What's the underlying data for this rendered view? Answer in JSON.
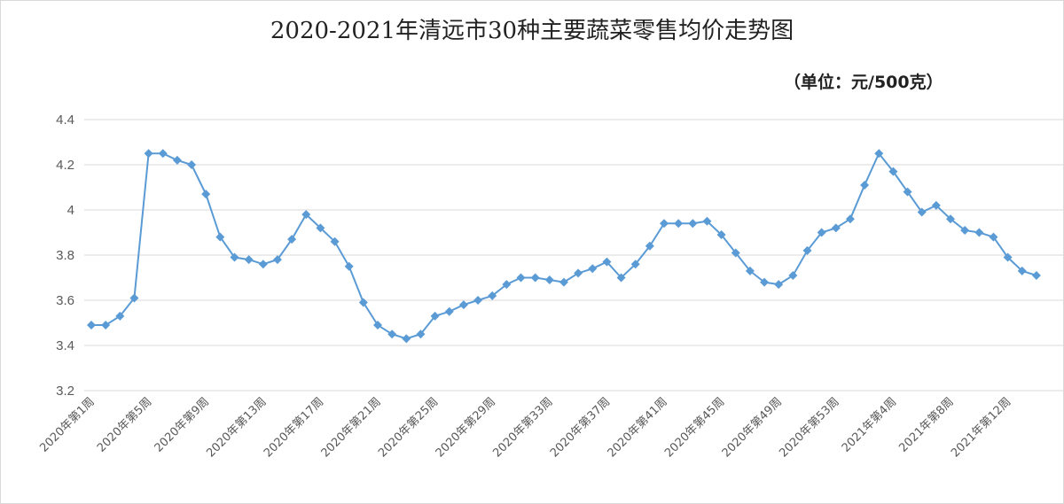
{
  "chart_data": {
    "type": "line",
    "title": "2020-2021年清远市30种主要蔬菜零售均价走势图",
    "unit": "（单位：元/500克）",
    "ylim": [
      3.2,
      4.4
    ],
    "yticks": [
      "3.2",
      "3.4",
      "3.6",
      "3.8",
      "4",
      "4.2",
      "4.4"
    ],
    "grid": true,
    "line_color": "#5b9bd5",
    "x_labels": [
      "2020年第1周",
      "2020年第5周",
      "2020年第9周",
      "2020年第13周",
      "2020年第17周",
      "2020年第21周",
      "2020年第25周",
      "2020年第29周",
      "2020年第33周",
      "2020年第37周",
      "2020年第41周",
      "2020年第45周",
      "2020年第49周",
      "2020年第53周",
      "2021年第4周",
      "2021年第8周",
      "2021年第12周"
    ],
    "label_every": 4,
    "values": [
      3.49,
      3.49,
      3.53,
      3.61,
      4.25,
      4.25,
      4.22,
      4.2,
      4.07,
      3.88,
      3.79,
      3.78,
      3.76,
      3.78,
      3.87,
      3.98,
      3.92,
      3.86,
      3.75,
      3.59,
      3.49,
      3.45,
      3.43,
      3.45,
      3.53,
      3.55,
      3.58,
      3.6,
      3.62,
      3.67,
      3.7,
      3.7,
      3.69,
      3.68,
      3.72,
      3.74,
      3.77,
      3.7,
      3.76,
      3.84,
      3.94,
      3.94,
      3.94,
      3.95,
      3.89,
      3.81,
      3.73,
      3.68,
      3.67,
      3.71,
      3.82,
      3.9,
      3.92,
      3.96,
      4.11,
      4.25,
      4.17,
      4.08,
      3.99,
      4.02,
      3.96,
      3.91,
      3.9,
      3.88,
      3.79,
      3.73,
      3.71
    ]
  }
}
